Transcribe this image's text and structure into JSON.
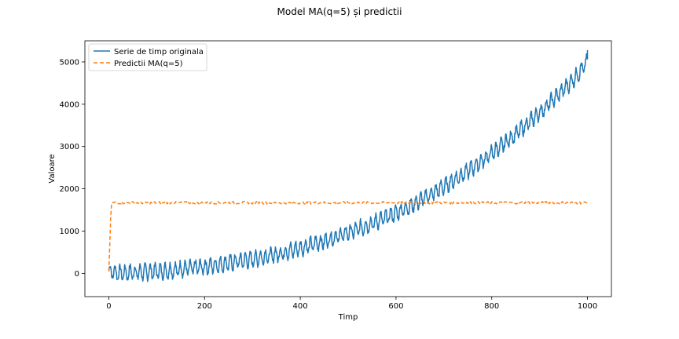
{
  "chart_data": {
    "type": "line",
    "title": "Model MA(q=5) și predictii",
    "xlabel": "Timp",
    "ylabel": "Valoare",
    "xlim": [
      -50,
      1050
    ],
    "ylim": [
      -550,
      5500
    ],
    "xticks": [
      0,
      200,
      400,
      600,
      800,
      1000
    ],
    "yticks": [
      0,
      1000,
      2000,
      3000,
      4000,
      5000
    ],
    "grid": false,
    "legend_position": "top-left",
    "series": [
      {
        "name": "Serie de timp originala",
        "color": "#1f77b4",
        "style": "solid",
        "x": [
          0,
          25,
          50,
          75,
          100,
          125,
          150,
          175,
          200,
          225,
          250,
          275,
          300,
          325,
          350,
          375,
          400,
          425,
          450,
          475,
          500,
          525,
          550,
          575,
          600,
          625,
          650,
          675,
          700,
          725,
          750,
          775,
          800,
          825,
          850,
          875,
          900,
          925,
          950,
          975,
          1000
        ],
        "y": [
          50,
          0,
          20,
          30,
          50,
          60,
          100,
          130,
          160,
          200,
          240,
          290,
          330,
          390,
          450,
          520,
          600,
          680,
          760,
          860,
          960,
          1060,
          1180,
          1300,
          1430,
          1570,
          1720,
          1880,
          2050,
          2230,
          2420,
          2620,
          2840,
          3060,
          3300,
          3540,
          3800,
          4070,
          4350,
          4640,
          5000
        ],
        "noise_amp": 160
      },
      {
        "name": "Predictii MA(q=5)",
        "color": "#ff7f0e",
        "style": "dashed",
        "x": [
          0,
          5,
          1000
        ],
        "y": [
          50,
          1670,
          1670
        ],
        "noise_amp": 30
      }
    ]
  }
}
